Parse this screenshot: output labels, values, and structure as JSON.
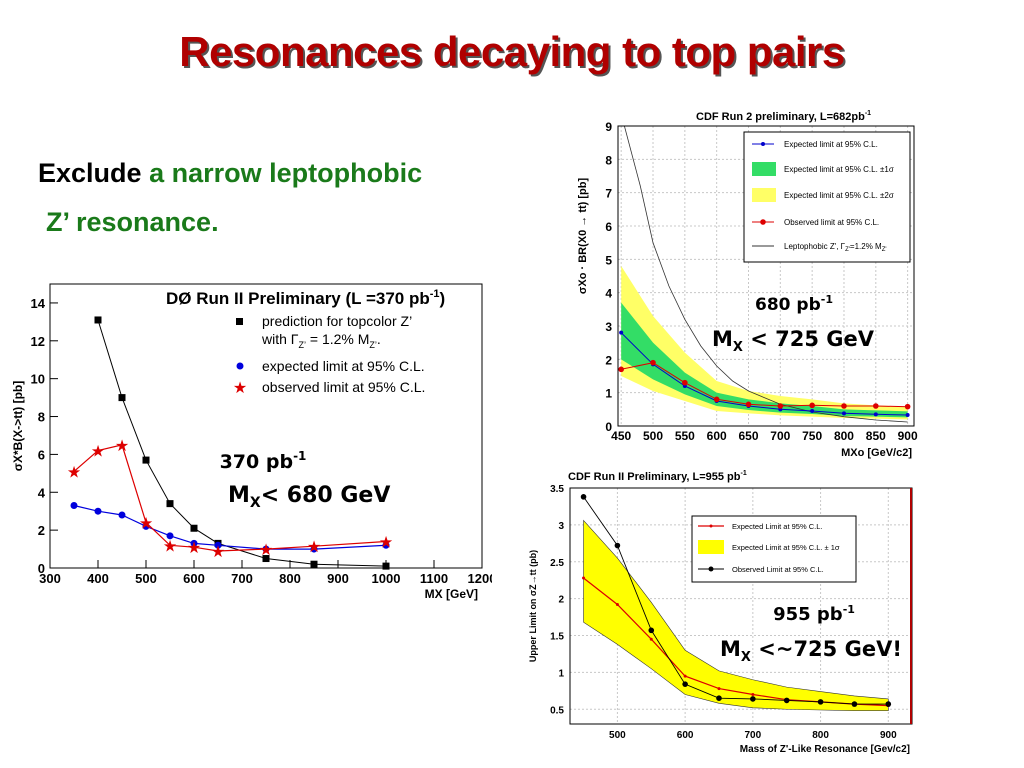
{
  "slide": {
    "title": "Resonances decaying to top pairs",
    "bullet_line1_black": "Exclude",
    "bullet_line1_green": "a narrow leptophobic",
    "bullet_line2_green": "Z’ resonance."
  },
  "chart_data": [
    {
      "type": "line",
      "title": "DØ Run II Preliminary",
      "lumi_label": "(L =370 pb",
      "lumi_sup": "-1",
      "lumi_close": ")",
      "ylabel": "σX*B(X->tt) [pb]",
      "xlabel": "MX [GeV]",
      "xlim": [
        300,
        1200
      ],
      "ylim": [
        0,
        15
      ],
      "xticks": [
        300,
        400,
        500,
        600,
        700,
        800,
        900,
        1000,
        1100,
        1200
      ],
      "yticks": [
        0,
        2,
        4,
        6,
        8,
        10,
        12,
        14
      ],
      "legend_position": "top-right",
      "legend": {
        "prediction_line1": "prediction for topcolor Z’",
        "prediction_line2": "with Γ",
        "prediction_sub": "Z’",
        "prediction_rest": " = 1.2% M",
        "prediction_sub2": "Z’",
        "prediction_end": ".",
        "expected": "expected limit at 95% C.L.",
        "observed": "observed limit at 95% C.L."
      },
      "series": [
        {
          "name": "prediction for topcolor Z’",
          "color": "#000000",
          "marker": "square",
          "x": [
            400,
            450,
            500,
            550,
            600,
            650,
            750,
            850,
            1000
          ],
          "y": [
            13.1,
            9.0,
            5.7,
            3.4,
            2.1,
            1.3,
            0.5,
            0.2,
            0.1
          ]
        },
        {
          "name": "expected limit at 95% C.L.",
          "color": "#0000dd",
          "marker": "circle",
          "x": [
            350,
            400,
            450,
            500,
            550,
            600,
            650,
            750,
            850,
            1000
          ],
          "y": [
            3.3,
            3.0,
            2.8,
            2.2,
            1.7,
            1.3,
            1.2,
            1.0,
            1.0,
            1.2
          ]
        },
        {
          "name": "observed limit at 95% C.L.",
          "color": "#dd0000",
          "marker": "star",
          "x": [
            350,
            400,
            450,
            500,
            550,
            600,
            650,
            750,
            850,
            1000
          ],
          "y": [
            5.1,
            6.2,
            6.5,
            2.4,
            1.2,
            1.1,
            0.9,
            1.0,
            1.15,
            1.4
          ]
        }
      ],
      "annotation": {
        "lumi": "370 pb",
        "lumi_sup": "-1",
        "limit_m": "M",
        "limit_sub": "X",
        "limit_rest": "< 680 GeV"
      }
    },
    {
      "type": "line",
      "title": "CDF Run 2 preliminary, L=682pb",
      "title_sup": "-1",
      "ylabel": "σXo · BR(X0 → tt) [pb]",
      "xlabel": "MXo [GeV/c2]",
      "xlim": [
        445,
        910
      ],
      "ylim": [
        0,
        9
      ],
      "xticks": [
        450,
        500,
        550,
        600,
        650,
        700,
        750,
        800,
        850,
        900
      ],
      "yticks": [
        0,
        1,
        2,
        3,
        4,
        5,
        6,
        7,
        8,
        9
      ],
      "legend_position": "top-right",
      "legend": {
        "expected": "Expected limit at 95% C.L.",
        "band1": "Expected limit at 95% C.L. ±1σ",
        "band2": "Expected limit at 95% C.L. ±2σ",
        "observed": "Observed limit at 95% C.L.",
        "theory": "Leptophobic Z', Γ",
        "theory_sub": "Z'",
        "theory_rest": "=1.2% M",
        "theory_sub2": "Z'"
      },
      "x": [
        450,
        500,
        550,
        600,
        650,
        700,
        750,
        800,
        850,
        900
      ],
      "series": [
        {
          "name": "Expected limit at 95% C.L.",
          "color": "#0000cc",
          "y": [
            2.8,
            1.85,
            1.2,
            0.75,
            0.6,
            0.5,
            0.45,
            0.38,
            0.35,
            0.33
          ]
        },
        {
          "name": "Observed limit at 95% C.L.",
          "color": "#dd0000",
          "y": [
            1.7,
            1.9,
            1.3,
            0.8,
            0.65,
            0.6,
            0.62,
            0.6,
            0.6,
            0.58
          ]
        }
      ],
      "band_1sigma": {
        "lo": [
          2.0,
          1.4,
          0.95,
          0.6,
          0.48,
          0.4,
          0.36,
          0.3,
          0.28,
          0.26
        ],
        "hi": [
          3.7,
          2.5,
          1.6,
          1.0,
          0.8,
          0.68,
          0.6,
          0.5,
          0.47,
          0.44
        ]
      },
      "band_2sigma": {
        "lo": [
          1.5,
          1.05,
          0.75,
          0.45,
          0.38,
          0.32,
          0.28,
          0.24,
          0.22,
          0.2
        ],
        "hi": [
          4.8,
          3.3,
          2.2,
          1.35,
          1.05,
          0.9,
          0.8,
          0.68,
          0.62,
          0.58
        ]
      },
      "theory": {
        "x": [
          455,
          480,
          500,
          525,
          550,
          575,
          600,
          625,
          650,
          700,
          750,
          800,
          850,
          900
        ],
        "y": [
          9.0,
          7.2,
          5.5,
          4.2,
          3.2,
          2.4,
          1.8,
          1.35,
          1.05,
          0.65,
          0.42,
          0.28,
          0.18,
          0.12
        ]
      },
      "annotation": {
        "lumi": "680 pb",
        "lumi_sup": "-1",
        "limit_m": "M",
        "limit_sub": "X",
        "limit_rest": " < 725 GeV"
      }
    },
    {
      "type": "line",
      "title": "CDF Run II Preliminary, L=955 pb",
      "title_sup": "-1",
      "ylabel": "Upper Limit on σZ→tt (pb)",
      "xlabel": "Mass of Z'-Like Resonance [Gev/c2]",
      "xlim": [
        430,
        935
      ],
      "ylim": [
        0.3,
        3.5
      ],
      "xticks": [
        500,
        600,
        700,
        800,
        900
      ],
      "yticks": [
        0.5,
        1,
        1.5,
        2,
        2.5,
        3,
        3.5
      ],
      "legend_position": "top-right",
      "legend": {
        "expected": "Expected Limit at 95% C.L.",
        "band": "Expected Limit at 95% C.L. ± 1σ",
        "observed": "Observed Limit at 95% C.L."
      },
      "x": [
        450,
        500,
        550,
        600,
        650,
        700,
        750,
        800,
        850,
        900
      ],
      "series": [
        {
          "name": "Expected Limit at 95% C.L.",
          "color": "#dd0000",
          "y": [
            2.28,
            1.92,
            1.45,
            0.95,
            0.78,
            0.7,
            0.63,
            0.6,
            0.57,
            0.55
          ]
        },
        {
          "name": "Observed Limit at 95% C.L.",
          "color": "#000000",
          "y": [
            3.38,
            2.72,
            1.57,
            0.84,
            0.65,
            0.64,
            0.62,
            0.6,
            0.57,
            0.57
          ]
        }
      ],
      "band": {
        "lo": [
          1.68,
          1.38,
          1.05,
          0.7,
          0.58,
          0.52,
          0.5,
          0.49,
          0.48,
          0.48
        ],
        "hi": [
          3.06,
          2.55,
          1.95,
          1.3,
          1.02,
          0.9,
          0.8,
          0.74,
          0.68,
          0.64
        ]
      },
      "annotation": {
        "lumi": "955 pb",
        "lumi_sup": "-1",
        "limit_m": "M",
        "limit_sub": "X",
        "limit_rest": " <~725 GeV!"
      }
    }
  ]
}
